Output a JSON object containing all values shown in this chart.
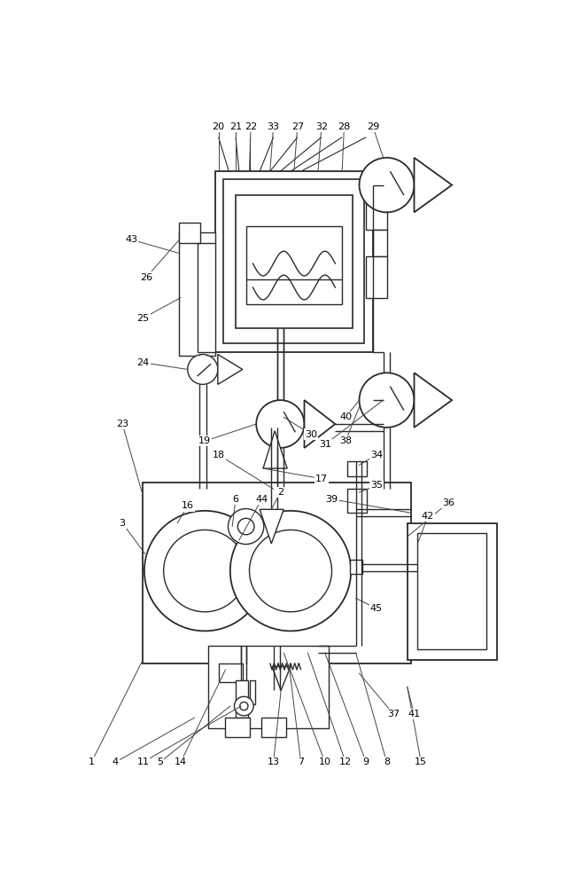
{
  "bg_color": "#ffffff",
  "line_color": "#2a2a2a",
  "lw": 1.0,
  "fig_width": 6.4,
  "fig_height": 10.0
}
